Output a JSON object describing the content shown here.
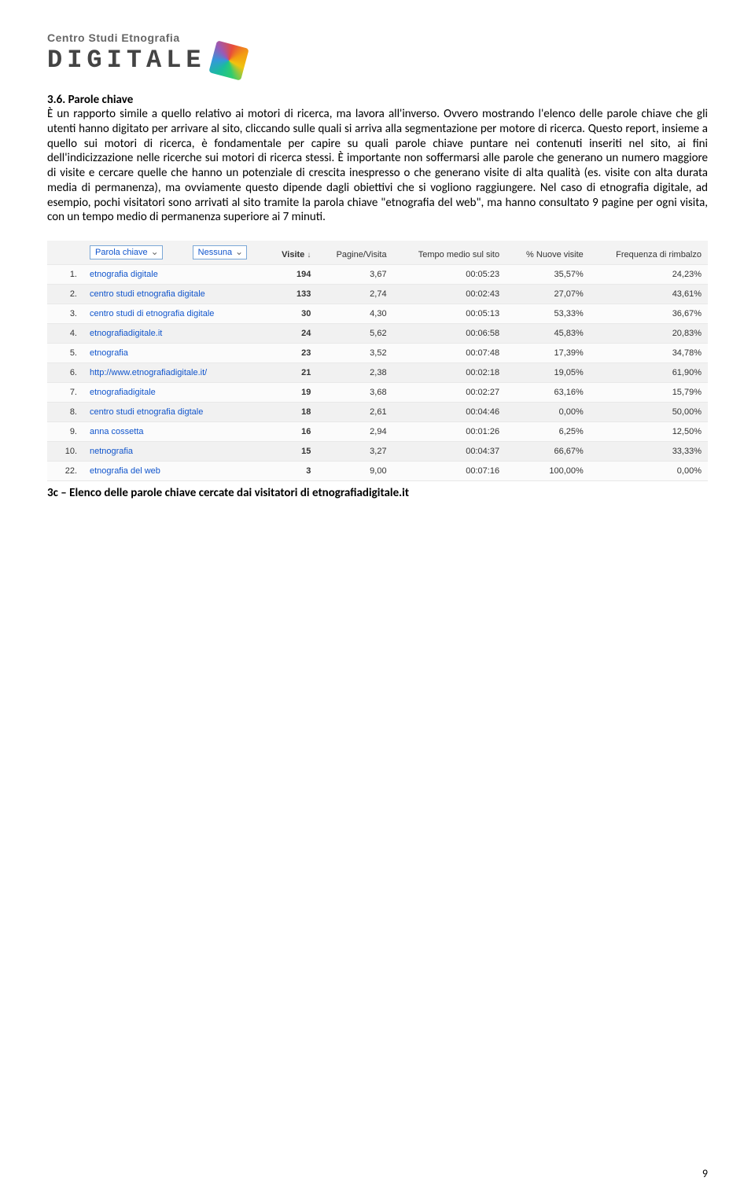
{
  "logo": {
    "line1": "Centro Studi Etnografia",
    "line2": "DIGITALE"
  },
  "section_title": "3.6. Parole chiave",
  "paragraph": "È un rapporto simile a quello relativo ai motori di ricerca, ma lavora all'inverso. Ovvero mostrando l'elenco delle parole chiave che gli utenti hanno digitato per arrivare al sito, cliccando sulle quali si arriva alla segmentazione per motore di ricerca. Questo report, insieme a quello sui motori di ricerca, è fondamentale per capire su quali parole chiave puntare nei contenuti inseriti nel sito, ai fini dell'indicizzazione nelle ricerche sui motori di ricerca stessi. È importante non soffermarsi alle parole che generano un numero maggiore di visite e cercare quelle che hanno un potenziale di crescita inespresso o che generano visite di alta qualità (es. visite con alta durata media di permanenza), ma ovviamente questo dipende dagli obiettivi che si vogliono raggiungere. Nel caso di etnografia digitale, ad esempio, pochi visitatori sono arrivati al sito tramite la parola chiave \"etnografia del web\", ma hanno consultato 9 pagine per ogni visita, con un tempo medio di permanenza superiore ai 7 minuti.",
  "table": {
    "header": {
      "select1": "Parola chiave",
      "select2": "Nessuna",
      "visite": "Visite",
      "pagine": "Pagine/Visita",
      "tempo": "Tempo medio sul sito",
      "nuove": "% Nuove visite",
      "rimbalzo": "Frequenza di rimbalzo"
    },
    "rows": [
      {
        "n": "1.",
        "kw": "etnografia digitale",
        "visite": "194",
        "pagine": "3,67",
        "tempo": "00:05:23",
        "nuove": "35,57%",
        "rimbalzo": "24,23%"
      },
      {
        "n": "2.",
        "kw": "centro studi etnografia digitale",
        "visite": "133",
        "pagine": "2,74",
        "tempo": "00:02:43",
        "nuove": "27,07%",
        "rimbalzo": "43,61%"
      },
      {
        "n": "3.",
        "kw": "centro studi di etnografia digitale",
        "visite": "30",
        "pagine": "4,30",
        "tempo": "00:05:13",
        "nuove": "53,33%",
        "rimbalzo": "36,67%"
      },
      {
        "n": "4.",
        "kw": "etnografiadigitale.it",
        "visite": "24",
        "pagine": "5,62",
        "tempo": "00:06:58",
        "nuove": "45,83%",
        "rimbalzo": "20,83%"
      },
      {
        "n": "5.",
        "kw": "etnografia",
        "visite": "23",
        "pagine": "3,52",
        "tempo": "00:07:48",
        "nuove": "17,39%",
        "rimbalzo": "34,78%"
      },
      {
        "n": "6.",
        "kw": "http://www.etnografiadigitale.it/",
        "visite": "21",
        "pagine": "2,38",
        "tempo": "00:02:18",
        "nuove": "19,05%",
        "rimbalzo": "61,90%"
      },
      {
        "n": "7.",
        "kw": "etnografiadigitale",
        "visite": "19",
        "pagine": "3,68",
        "tempo": "00:02:27",
        "nuove": "63,16%",
        "rimbalzo": "15,79%"
      },
      {
        "n": "8.",
        "kw": "centro studi etnografia digtale",
        "visite": "18",
        "pagine": "2,61",
        "tempo": "00:04:46",
        "nuove": "0,00%",
        "rimbalzo": "50,00%"
      },
      {
        "n": "9.",
        "kw": "anna cossetta",
        "visite": "16",
        "pagine": "2,94",
        "tempo": "00:01:26",
        "nuove": "6,25%",
        "rimbalzo": "12,50%"
      },
      {
        "n": "10.",
        "kw": "netnografia",
        "visite": "15",
        "pagine": "3,27",
        "tempo": "00:04:37",
        "nuove": "66,67%",
        "rimbalzo": "33,33%"
      },
      {
        "n": "22.",
        "kw": "etnografia del web",
        "visite": "3",
        "pagine": "9,00",
        "tempo": "00:07:16",
        "nuove": "100,00%",
        "rimbalzo": "0,00%"
      }
    ]
  },
  "caption": "3c – Elenco delle parole chiave cercate dai visitatori di etnografiadigitale.it",
  "page_number": "9"
}
